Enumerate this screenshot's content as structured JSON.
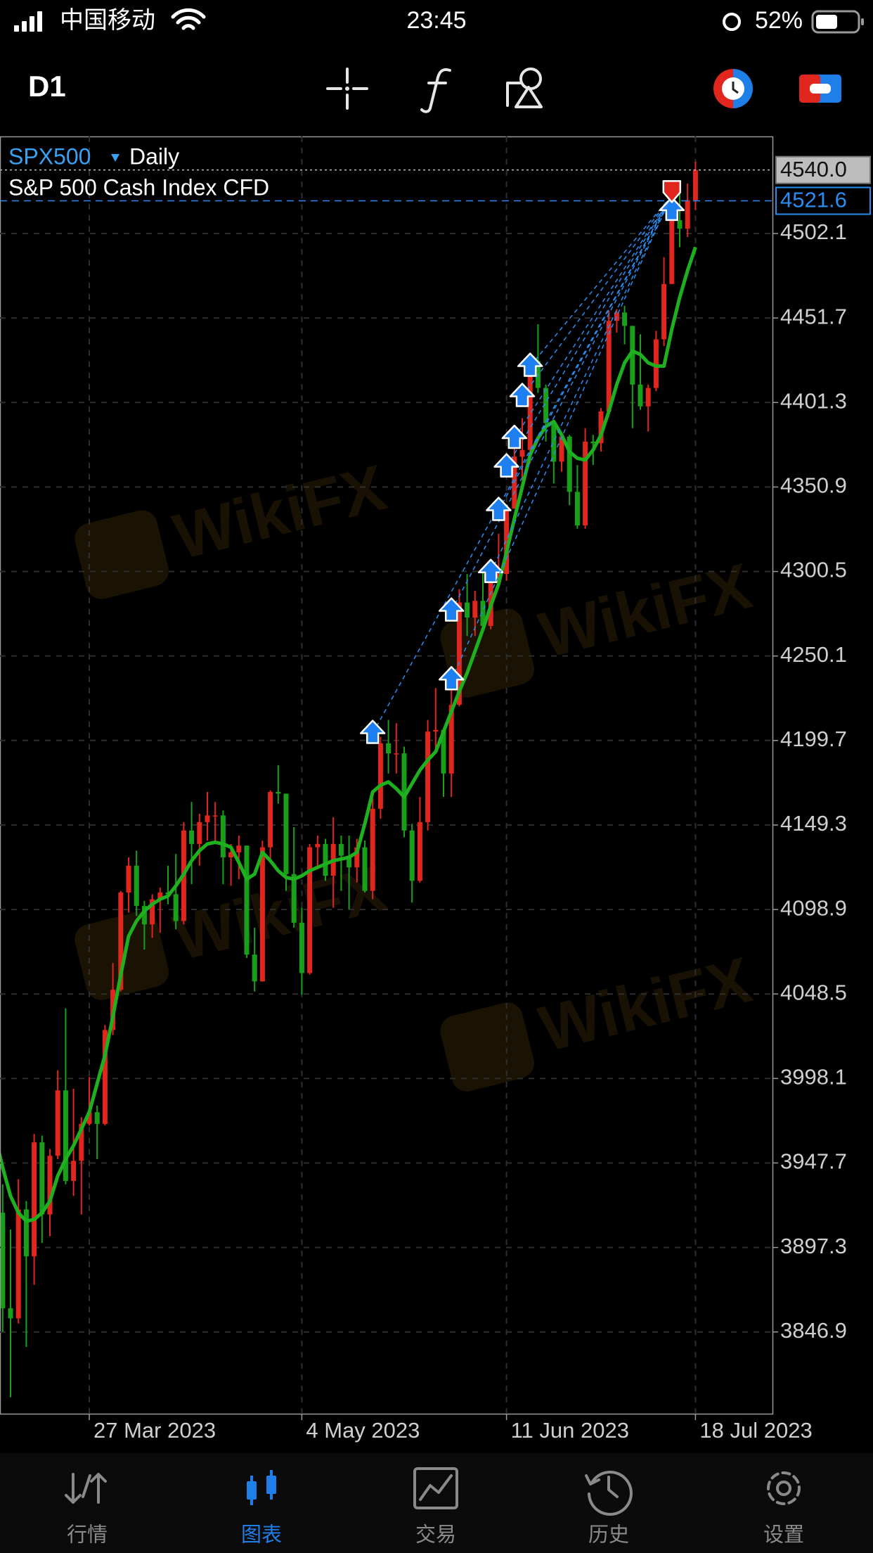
{
  "status_bar": {
    "carrier": "中国移动",
    "time": "23:45",
    "battery": "52%"
  },
  "toolbar": {
    "timeframe": "D1"
  },
  "watermark": "WikiFX",
  "chart_data": {
    "type": "candlestick",
    "symbol": "SPX500",
    "timeframe": "Daily",
    "description": "S&P 500 Cash Index CFD",
    "categories": [
      null,
      null,
      null,
      null,
      null,
      null,
      null,
      null,
      null,
      null,
      null,
      null,
      "27 Mar 2023",
      null,
      null,
      null,
      null,
      null,
      null,
      null,
      null,
      null,
      null,
      null,
      null,
      null,
      null,
      null,
      null,
      null,
      null,
      null,
      null,
      null,
      null,
      null,
      null,
      null,
      null,
      "4 May 2023",
      null,
      null,
      null,
      null,
      null,
      null,
      null,
      null,
      null,
      null,
      null,
      null,
      null,
      null,
      null,
      null,
      null,
      null,
      null,
      null,
      null,
      null,
      null,
      null,
      null,
      "11 Jun 2023",
      null,
      null,
      null,
      null,
      null,
      null,
      null,
      null,
      null,
      null,
      null,
      null,
      null,
      null,
      null,
      null,
      null,
      null,
      null,
      null,
      null,
      null,
      null,
      "18 Jul 2023"
    ],
    "open": [
      3990,
      3918,
      3861,
      3855,
      3920,
      3892,
      3960,
      3917,
      3952,
      3991,
      3937,
      3949,
      3971,
      3978,
      3971,
      4027,
      4051,
      4109,
      4125,
      4101,
      4090,
      4105,
      4109,
      4108,
      4092,
      4146,
      4138,
      4151,
      4155,
      4155,
      4130,
      4133,
      4137,
      4072,
      4056,
      4136,
      4169,
      4168,
      4120,
      4091,
      4061,
      4136,
      4138,
      4119,
      4138,
      4131,
      4124,
      4136,
      4110,
      4159,
      4198,
      4192,
      4192,
      4146,
      4116,
      4151,
      4205,
      4206,
      4180,
      4221,
      4282,
      4273,
      4283,
      4268,
      4294,
      4299,
      4338,
      4369,
      4373,
      4426,
      4410,
      4389,
      4366,
      4381,
      4348,
      4328,
      4378,
      4377,
      4396,
      4450,
      4455,
      4447,
      4412,
      4399,
      4410,
      4439,
      4472,
      4510,
      4505,
      4522
    ],
    "high": [
      3998,
      3935,
      3908,
      3938,
      3925,
      3965,
      3964,
      3956,
      4003,
      4040,
      3992,
      3975,
      3999,
      3982,
      4030,
      4067,
      4110,
      4130,
      4134,
      4104,
      4108,
      4112,
      4125,
      4132,
      4151,
      4163,
      4156,
      4169,
      4163,
      4158,
      4138,
      4143,
      4137,
      4088,
      4140,
      4170,
      4185,
      4168,
      4148,
      4100,
      4138,
      4143,
      4141,
      4154,
      4143,
      4143,
      4141,
      4140,
      4165,
      4202,
      4212,
      4210,
      4196,
      4150,
      4166,
      4212,
      4231,
      4207,
      4232,
      4290,
      4299,
      4289,
      4300,
      4298,
      4323,
      4340,
      4375,
      4392,
      4430,
      4448,
      4412,
      4391,
      4382,
      4382,
      4364,
      4386,
      4382,
      4398,
      4456,
      4457,
      4459,
      4447,
      4442,
      4412,
      4444,
      4488,
      4527,
      4528,
      4532,
      4545
    ],
    "low": [
      3915,
      3847,
      3808,
      3852,
      3838,
      3875,
      3900,
      3904,
      3950,
      3935,
      3928,
      3917,
      3970,
      3950,
      3970,
      4024,
      4050,
      4097,
      4095,
      4075,
      4082,
      4085,
      4102,
      4087,
      4090,
      4114,
      4125,
      4140,
      4139,
      4114,
      4113,
      4117,
      4070,
      4050,
      4056,
      4128,
      4162,
      4110,
      4088,
      4048,
      4060,
      4124,
      4116,
      4100,
      4110,
      4099,
      4115,
      4109,
      4105,
      4153,
      4180,
      4180,
      4142,
      4103,
      4115,
      4146,
      4192,
      4166,
      4166,
      4220,
      4262,
      4262,
      4265,
      4266,
      4292,
      4295,
      4338,
      4355,
      4365,
      4407,
      4378,
      4353,
      4360,
      4340,
      4326,
      4326,
      4364,
      4372,
      4396,
      4443,
      4436,
      4386,
      4397,
      4384,
      4408,
      4435,
      4472,
      4494,
      4500,
      4516
    ],
    "close": [
      3918,
      3861,
      3855,
      3920,
      3892,
      3960,
      3917,
      3952,
      3991,
      3937,
      3949,
      3971,
      3978,
      3971,
      4027,
      4051,
      4109,
      4125,
      4101,
      4090,
      4105,
      4109,
      4108,
      4092,
      4146,
      4138,
      4151,
      4155,
      4155,
      4130,
      4133,
      4137,
      4072,
      4056,
      4136,
      4169,
      4168,
      4120,
      4091,
      4061,
      4136,
      4138,
      4119,
      4138,
      4131,
      4124,
      4136,
      4110,
      4159,
      4198,
      4192,
      4192,
      4146,
      4116,
      4151,
      4205,
      4206,
      4180,
      4221,
      4282,
      4273,
      4283,
      4268,
      4294,
      4299,
      4338,
      4369,
      4373,
      4426,
      4410,
      4389,
      4366,
      4381,
      4348,
      4328,
      4378,
      4377,
      4396,
      4450,
      4455,
      4447,
      4412,
      4399,
      4410,
      4439,
      4472,
      4510,
      4505,
      4522,
      4540
    ],
    "up_color": "#e0261d",
    "down_color": "#1a9f1a",
    "series": [
      {
        "type": "line",
        "color": "#1fb01f",
        "values": [
          3965,
          3945,
          3928,
          3918,
          3913,
          3914,
          3918,
          3925,
          3940,
          3950,
          3958,
          3968,
          3978,
          3995,
          4012,
          4035,
          4060,
          4083,
          4092,
          4098,
          4102,
          4105,
          4107,
          4113,
          4120,
          4128,
          4134,
          4138,
          4139,
          4138,
          4136,
          4127,
          4117,
          4120,
          4133,
          4128,
          4122,
          4118,
          4117,
          4119,
          4122,
          4124,
          4126,
          4128,
          4129,
          4130,
          4133,
          4150,
          4169,
          4173,
          4175,
          4171,
          4166,
          4174,
          4182,
          4188,
          4193,
          4205,
          4217,
          4229,
          4240,
          4253,
          4266,
          4280,
          4293,
          4312,
          4332,
          4351,
          4370,
          4380,
          4387,
          4390,
          4382,
          4372,
          4368,
          4367,
          4373,
          4382,
          4396,
          4412,
          4425,
          4432,
          4430,
          4425,
          4423,
          4423,
          4445,
          4464,
          4480,
          4494
        ]
      },
      {
        "type": "buy-arrow",
        "color": "#1e7ff0",
        "values": [
          null,
          null,
          null,
          null,
          null,
          null,
          null,
          null,
          null,
          null,
          null,
          null,
          null,
          null,
          null,
          null,
          null,
          null,
          null,
          null,
          null,
          null,
          null,
          null,
          null,
          null,
          null,
          null,
          null,
          null,
          null,
          null,
          null,
          null,
          null,
          null,
          null,
          null,
          null,
          null,
          null,
          null,
          null,
          null,
          null,
          null,
          null,
          null,
          4204,
          null,
          null,
          null,
          null,
          null,
          null,
          null,
          null,
          null,
          4277,
          null,
          null,
          null,
          null,
          4300,
          4337,
          4363,
          4380,
          4405,
          4423,
          null,
          null,
          null,
          null,
          null,
          null,
          null,
          null,
          null,
          null,
          null,
          null,
          null,
          null,
          null,
          null,
          null,
          4516,
          null,
          null,
          null
        ]
      },
      {
        "type": "buy-arrow",
        "color": "#1e7ff0",
        "values": [
          null,
          null,
          null,
          null,
          null,
          null,
          null,
          null,
          null,
          null,
          null,
          null,
          null,
          null,
          null,
          null,
          null,
          null,
          null,
          null,
          null,
          null,
          null,
          null,
          null,
          null,
          null,
          null,
          null,
          null,
          null,
          null,
          null,
          null,
          null,
          null,
          null,
          null,
          null,
          null,
          null,
          null,
          null,
          null,
          null,
          null,
          null,
          null,
          null,
          null,
          null,
          null,
          null,
          null,
          null,
          null,
          null,
          null,
          4236,
          null,
          null,
          null,
          null,
          null,
          null,
          null,
          null,
          null,
          null,
          null,
          null,
          null,
          null,
          null,
          null,
          null,
          null,
          null,
          null,
          null,
          null,
          null,
          null,
          null,
          null,
          null,
          null,
          null,
          null,
          null
        ]
      },
      {
        "type": "close-arrow",
        "color": "#e0261d",
        "values": [
          null,
          null,
          null,
          null,
          null,
          null,
          null,
          null,
          null,
          null,
          null,
          null,
          null,
          null,
          null,
          null,
          null,
          null,
          null,
          null,
          null,
          null,
          null,
          null,
          null,
          null,
          null,
          null,
          null,
          null,
          null,
          null,
          null,
          null,
          null,
          null,
          null,
          null,
          null,
          null,
          null,
          null,
          null,
          null,
          null,
          null,
          null,
          null,
          null,
          null,
          null,
          null,
          null,
          null,
          null,
          null,
          null,
          null,
          null,
          null,
          null,
          null,
          null,
          null,
          null,
          null,
          null,
          null,
          null,
          null,
          null,
          null,
          null,
          null,
          null,
          null,
          null,
          null,
          null,
          null,
          null,
          null,
          null,
          null,
          null,
          null,
          4525,
          null,
          null,
          null
        ]
      }
    ],
    "price_lines": [
      {
        "value": 4540.0,
        "label": "4540.0",
        "color": "#bdbdbd"
      },
      {
        "value": 4521.6,
        "label": "4521.6",
        "color": "#2a8cf0"
      }
    ],
    "ylim": [
      3797.7,
      4560.0
    ],
    "yticks": [
      4502.1,
      4451.7,
      4401.3,
      4350.9,
      4300.5,
      4250.1,
      4199.7,
      4149.3,
      4098.9,
      4048.5,
      3998.1,
      3947.7,
      3897.3,
      3846.9
    ],
    "grid": true
  },
  "tab_bar": {
    "tabs": [
      {
        "label": "行情"
      },
      {
        "label": "图表"
      },
      {
        "label": "交易"
      },
      {
        "label": "历史"
      },
      {
        "label": "设置"
      }
    ]
  }
}
